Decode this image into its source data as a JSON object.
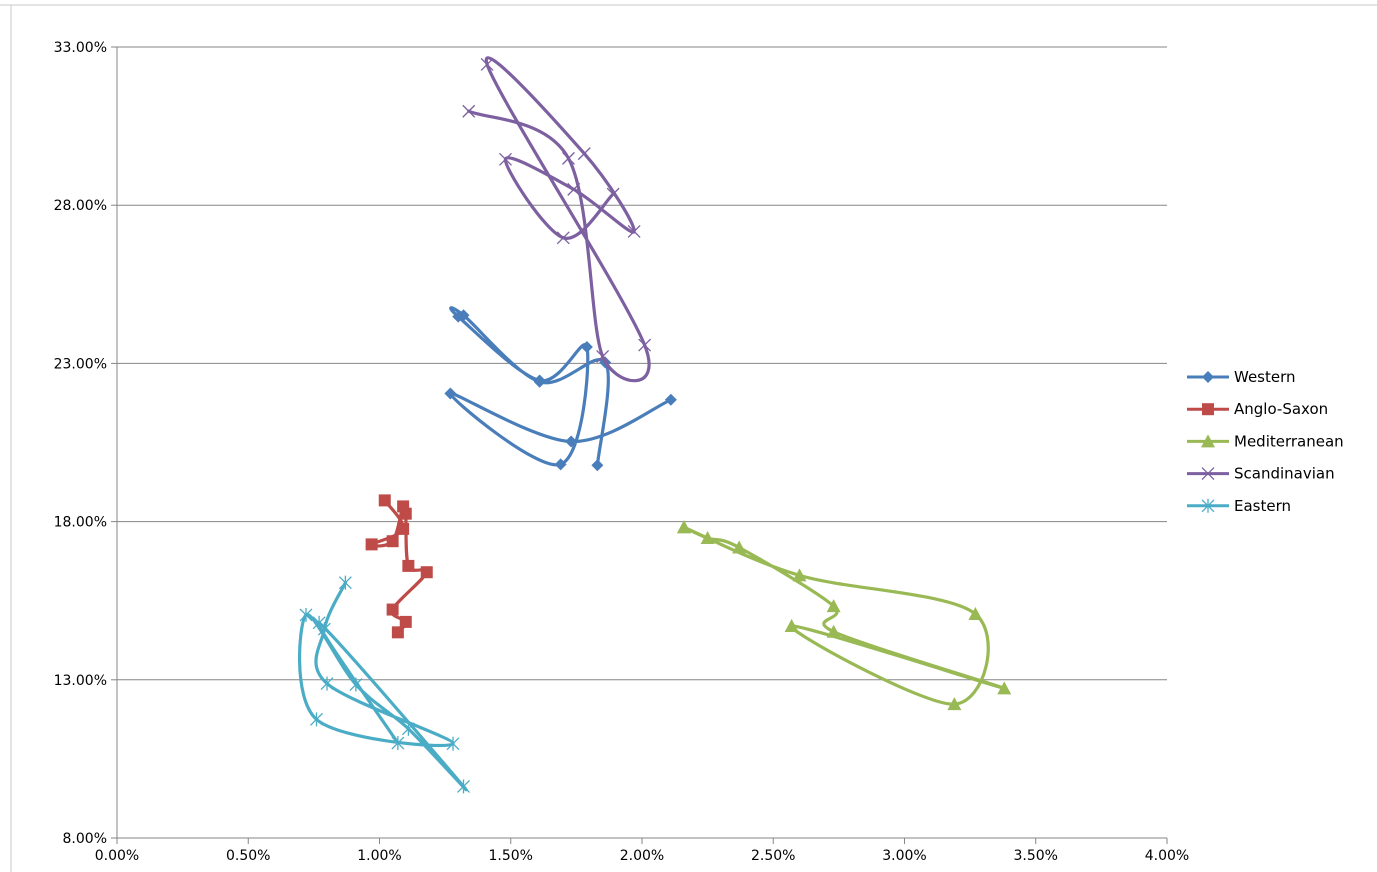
{
  "chart_data": {
    "type": "scatter",
    "style": "smoothed lines with markers",
    "title": "",
    "xlabel": "",
    "ylabel": "",
    "xlim": [
      0,
      0.04
    ],
    "ylim": [
      0.08,
      0.33
    ],
    "x_ticks": [
      "0.00%",
      "0.50%",
      "1.00%",
      "1.50%",
      "2.00%",
      "2.50%",
      "3.00%",
      "3.50%",
      "4.00%"
    ],
    "y_ticks": [
      "8.00%",
      "13.00%",
      "18.00%",
      "23.00%",
      "28.00%",
      "33.00%"
    ],
    "gridlines": "horizontal major",
    "legend_position": "right",
    "series": [
      {
        "name": "Western",
        "color": "#4a7ebb",
        "marker": "diamond",
        "points": [
          [
            0.0211,
            0.2185
          ],
          [
            0.0173,
            0.2053
          ],
          [
            0.0127,
            0.2205
          ],
          [
            0.0169,
            0.1981
          ],
          [
            0.0179,
            0.2352
          ],
          [
            0.0161,
            0.2246
          ],
          [
            0.013,
            0.2448
          ],
          [
            0.0132,
            0.2452
          ],
          [
            0.0161,
            0.2242
          ],
          [
            0.0186,
            0.2303
          ],
          [
            0.0183,
            0.1978
          ]
        ]
      },
      {
        "name": "Anglo-Saxon",
        "color": "#be4b48",
        "marker": "square",
        "points": [
          [
            0.0102,
            0.1867
          ],
          [
            0.0109,
            0.1777
          ],
          [
            0.0097,
            0.1728
          ],
          [
            0.0105,
            0.1738
          ],
          [
            0.0109,
            0.1848
          ],
          [
            0.011,
            0.1825
          ],
          [
            0.0111,
            0.166
          ],
          [
            0.0118,
            0.164
          ],
          [
            0.0105,
            0.1522
          ],
          [
            0.011,
            0.1483
          ],
          [
            0.0107,
            0.145
          ]
        ]
      },
      {
        "name": "Mediterranean",
        "color": "#98b954",
        "marker": "triangle",
        "points": [
          [
            0.0216,
            0.1782
          ],
          [
            0.026,
            0.163
          ],
          [
            0.0327,
            0.1508
          ],
          [
            0.0319,
            0.1223
          ],
          [
            0.0257,
            0.147
          ],
          [
            0.0338,
            0.1273
          ],
          [
            0.0273,
            0.1452
          ],
          [
            0.0273,
            0.1533
          ],
          [
            0.0237,
            0.1718
          ],
          [
            0.0225,
            0.1748
          ],
          [
            0.0216,
            0.1782
          ]
        ]
      },
      {
        "name": "Scandinavian",
        "color": "#7d60a0",
        "marker": "x",
        "points": [
          [
            0.0134,
            0.3097
          ],
          [
            0.0172,
            0.2948
          ],
          [
            0.0185,
            0.2322
          ],
          [
            0.0201,
            0.2358
          ],
          [
            0.0141,
            0.3245
          ],
          [
            0.0178,
            0.2963
          ],
          [
            0.0197,
            0.2717
          ],
          [
            0.0174,
            0.285
          ],
          [
            0.0148,
            0.2945
          ],
          [
            0.017,
            0.2697
          ],
          [
            0.0189,
            0.2835
          ]
        ]
      },
      {
        "name": "Eastern",
        "color": "#4bacc6",
        "marker": "star",
        "points": [
          [
            0.0087,
            0.1607
          ],
          [
            0.0079,
            0.146
          ],
          [
            0.008,
            0.1288
          ],
          [
            0.0128,
            0.1098
          ],
          [
            0.0076,
            0.1175
          ],
          [
            0.0072,
            0.1505
          ],
          [
            0.0091,
            0.1285
          ],
          [
            0.0111,
            0.1145
          ],
          [
            0.0132,
            0.0963
          ],
          [
            0.0077,
            0.148
          ],
          [
            0.0107,
            0.11
          ]
        ]
      }
    ]
  }
}
